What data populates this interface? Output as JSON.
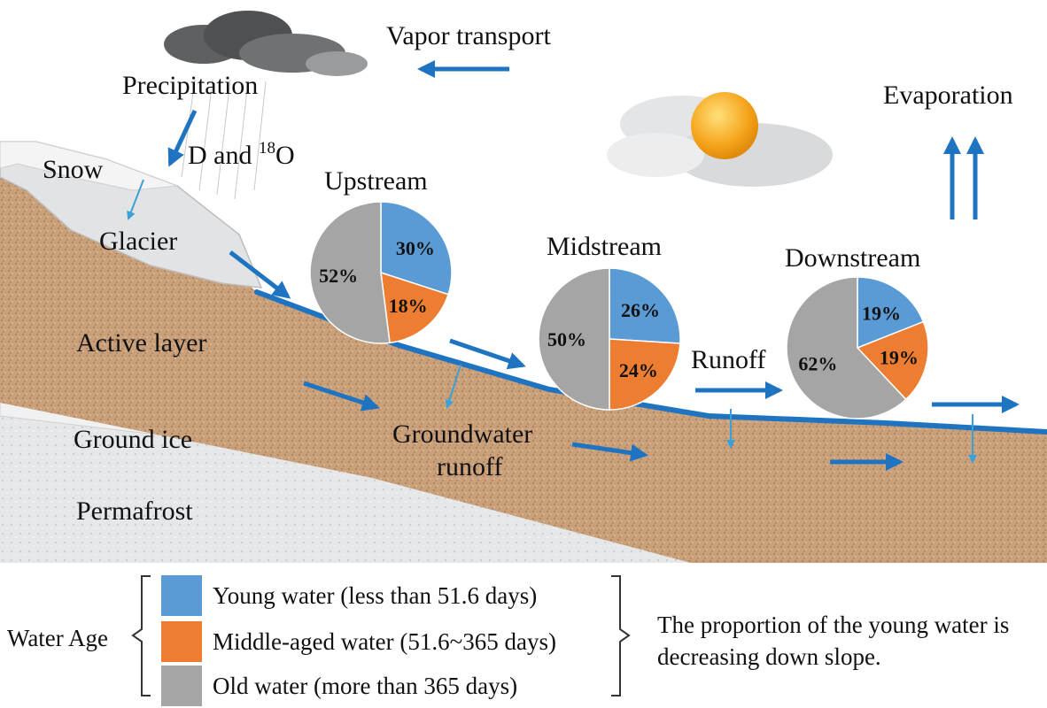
{
  "labels": {
    "vapor_transport": "Vapor transport",
    "precipitation": "Precipitation",
    "isotopes_prefix": "D and ",
    "isotopes_sup": "18",
    "isotopes_suffix": "O",
    "snow": "Snow",
    "glacier": "Glacier",
    "active_layer": "Active layer",
    "ground_ice": "Ground ice",
    "permafrost": "Permafrost",
    "groundwater_runoff_1": "Groundwater",
    "groundwater_runoff_2": "runoff",
    "runoff": "Runoff",
    "evaporation": "Evaporation"
  },
  "colors": {
    "young": "#5b9bd5",
    "middle": "#ed7d31",
    "old": "#a5a5a5",
    "arrow": "#1f74c2",
    "soil": "#c8a27c",
    "river": "#1f74c2"
  },
  "chart_data": [
    {
      "type": "pie",
      "title": "Upstream",
      "categories": [
        "Young water",
        "Middle-aged water",
        "Old water"
      ],
      "values": [
        30,
        18,
        52
      ],
      "labels": [
        "30%",
        "18%",
        "52%"
      ]
    },
    {
      "type": "pie",
      "title": "Midstream",
      "categories": [
        "Young water",
        "Middle-aged water",
        "Old water"
      ],
      "values": [
        26,
        24,
        50
      ],
      "labels": [
        "26%",
        "24%",
        "50%"
      ]
    },
    {
      "type": "pie",
      "title": "Downstream",
      "categories": [
        "Young water",
        "Middle-aged water",
        "Old water"
      ],
      "values": [
        19,
        19,
        62
      ],
      "labels": [
        "19%",
        "19%",
        "62%"
      ]
    }
  ],
  "legend": {
    "title": "Water Age",
    "items": [
      {
        "label": "Young water (less than 51.6 days)",
        "color": "#5b9bd5"
      },
      {
        "label": "Middle-aged water (51.6~365 days)",
        "color": "#ed7d31"
      },
      {
        "label": "Old water (more than 365 days)",
        "color": "#a5a5a5"
      }
    ],
    "note": "The proportion of the young water is decreasing down slope."
  }
}
